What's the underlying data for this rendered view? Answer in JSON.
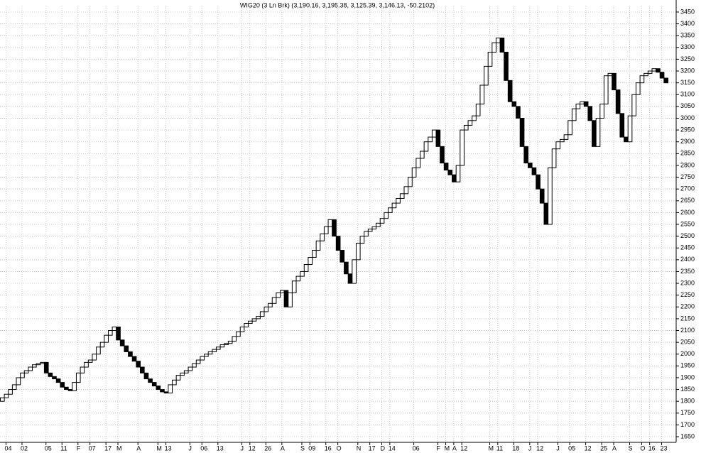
{
  "chart_data": {
    "type": "three-line-break",
    "title": "WIG20 (3 Ln Brk)  (3,190.16, 3,195.38, 3,125.39, 3,146.13, -50.2102)",
    "first_open": 1800,
    "values": [
      1815,
      1830,
      1850,
      1870,
      1900,
      1920,
      1930,
      1945,
      1955,
      1960,
      1965,
      1920,
      1905,
      1895,
      1880,
      1860,
      1850,
      1845,
      1880,
      1920,
      1945,
      1965,
      1975,
      2000,
      2030,
      2050,
      2080,
      2100,
      2115,
      2060,
      2035,
      2010,
      1990,
      1970,
      1945,
      1920,
      1895,
      1880,
      1865,
      1850,
      1840,
      1835,
      1870,
      1890,
      1910,
      1920,
      1930,
      1945,
      1960,
      1975,
      1990,
      2000,
      2010,
      2020,
      2030,
      2040,
      2045,
      2055,
      2075,
      2095,
      2115,
      2130,
      2140,
      2150,
      2160,
      2180,
      2200,
      2215,
      2240,
      2260,
      2270,
      2200,
      2260,
      2310,
      2330,
      2350,
      2380,
      2410,
      2440,
      2480,
      2510,
      2540,
      2570,
      2500,
      2440,
      2390,
      2340,
      2300,
      2400,
      2470,
      2500,
      2520,
      2530,
      2540,
      2555,
      2575,
      2600,
      2620,
      2640,
      2660,
      2680,
      2710,
      2750,
      2790,
      2830,
      2860,
      2900,
      2920,
      2950,
      2880,
      2810,
      2780,
      2760,
      2730,
      2800,
      2950,
      2970,
      2990,
      3010,
      3060,
      3140,
      3220,
      3280,
      3320,
      3340,
      3280,
      3160,
      3070,
      3050,
      3000,
      2880,
      2810,
      2790,
      2760,
      2700,
      2640,
      2550,
      2790,
      2870,
      2900,
      2910,
      2930,
      2990,
      3040,
      3060,
      3070,
      3050,
      2990,
      2880,
      3000,
      3060,
      3180,
      3190,
      3120,
      3020,
      2920,
      2900,
      3010,
      3100,
      3150,
      3180,
      3190,
      3200,
      3210,
      3195,
      3170,
      3150
    ],
    "categories": [
      null,
      "04",
      null,
      null,
      null,
      "02",
      null,
      null,
      null,
      null,
      null,
      "05",
      null,
      null,
      null,
      "11",
      null,
      null,
      null,
      "F",
      null,
      null,
      "07",
      null,
      null,
      null,
      "17",
      null,
      null,
      "M",
      null,
      null,
      null,
      null,
      "A",
      null,
      null,
      null,
      null,
      "M",
      null,
      "13",
      null,
      null,
      null,
      null,
      null,
      "J",
      null,
      null,
      "06",
      null,
      null,
      null,
      "13",
      null,
      null,
      null,
      null,
      null,
      "J",
      null,
      "12",
      null,
      null,
      null,
      "26",
      null,
      null,
      null,
      "A",
      null,
      null,
      null,
      null,
      "S",
      null,
      "09",
      null,
      null,
      null,
      "16",
      null,
      null,
      "O",
      null,
      null,
      null,
      null,
      "N",
      null,
      null,
      "17",
      null,
      null,
      "D",
      null,
      "14",
      null,
      null,
      null,
      null,
      null,
      "06",
      null,
      null,
      null,
      null,
      null,
      "F",
      null,
      "M",
      null,
      "A",
      null,
      "12",
      null,
      null,
      null,
      null,
      null,
      null,
      "M",
      null,
      "11",
      null,
      null,
      null,
      "18",
      null,
      null,
      null,
      "J",
      null,
      "12",
      null,
      null,
      null,
      null,
      "J",
      null,
      null,
      "05",
      null,
      null,
      null,
      "12",
      null,
      null,
      null,
      "25",
      null,
      null,
      "A",
      null,
      null,
      null,
      "S",
      null,
      null,
      "O",
      null,
      "16",
      null,
      null,
      "23",
      null
    ],
    "up_color": "#ffffff",
    "down_color": "#000000",
    "edge_color": "#000000",
    "ylim": [
      1626,
      3477
    ],
    "yticks": [
      1650,
      1700,
      1750,
      1800,
      1850,
      1900,
      1950,
      2000,
      2050,
      2100,
      2150,
      2200,
      2250,
      2300,
      2350,
      2400,
      2450,
      2500,
      2550,
      2600,
      2650,
      2700,
      2750,
      2800,
      2850,
      2900,
      2950,
      3000,
      3050,
      3100,
      3150,
      3200,
      3250,
      3300,
      3350,
      3400,
      3450
    ],
    "grid": true
  }
}
